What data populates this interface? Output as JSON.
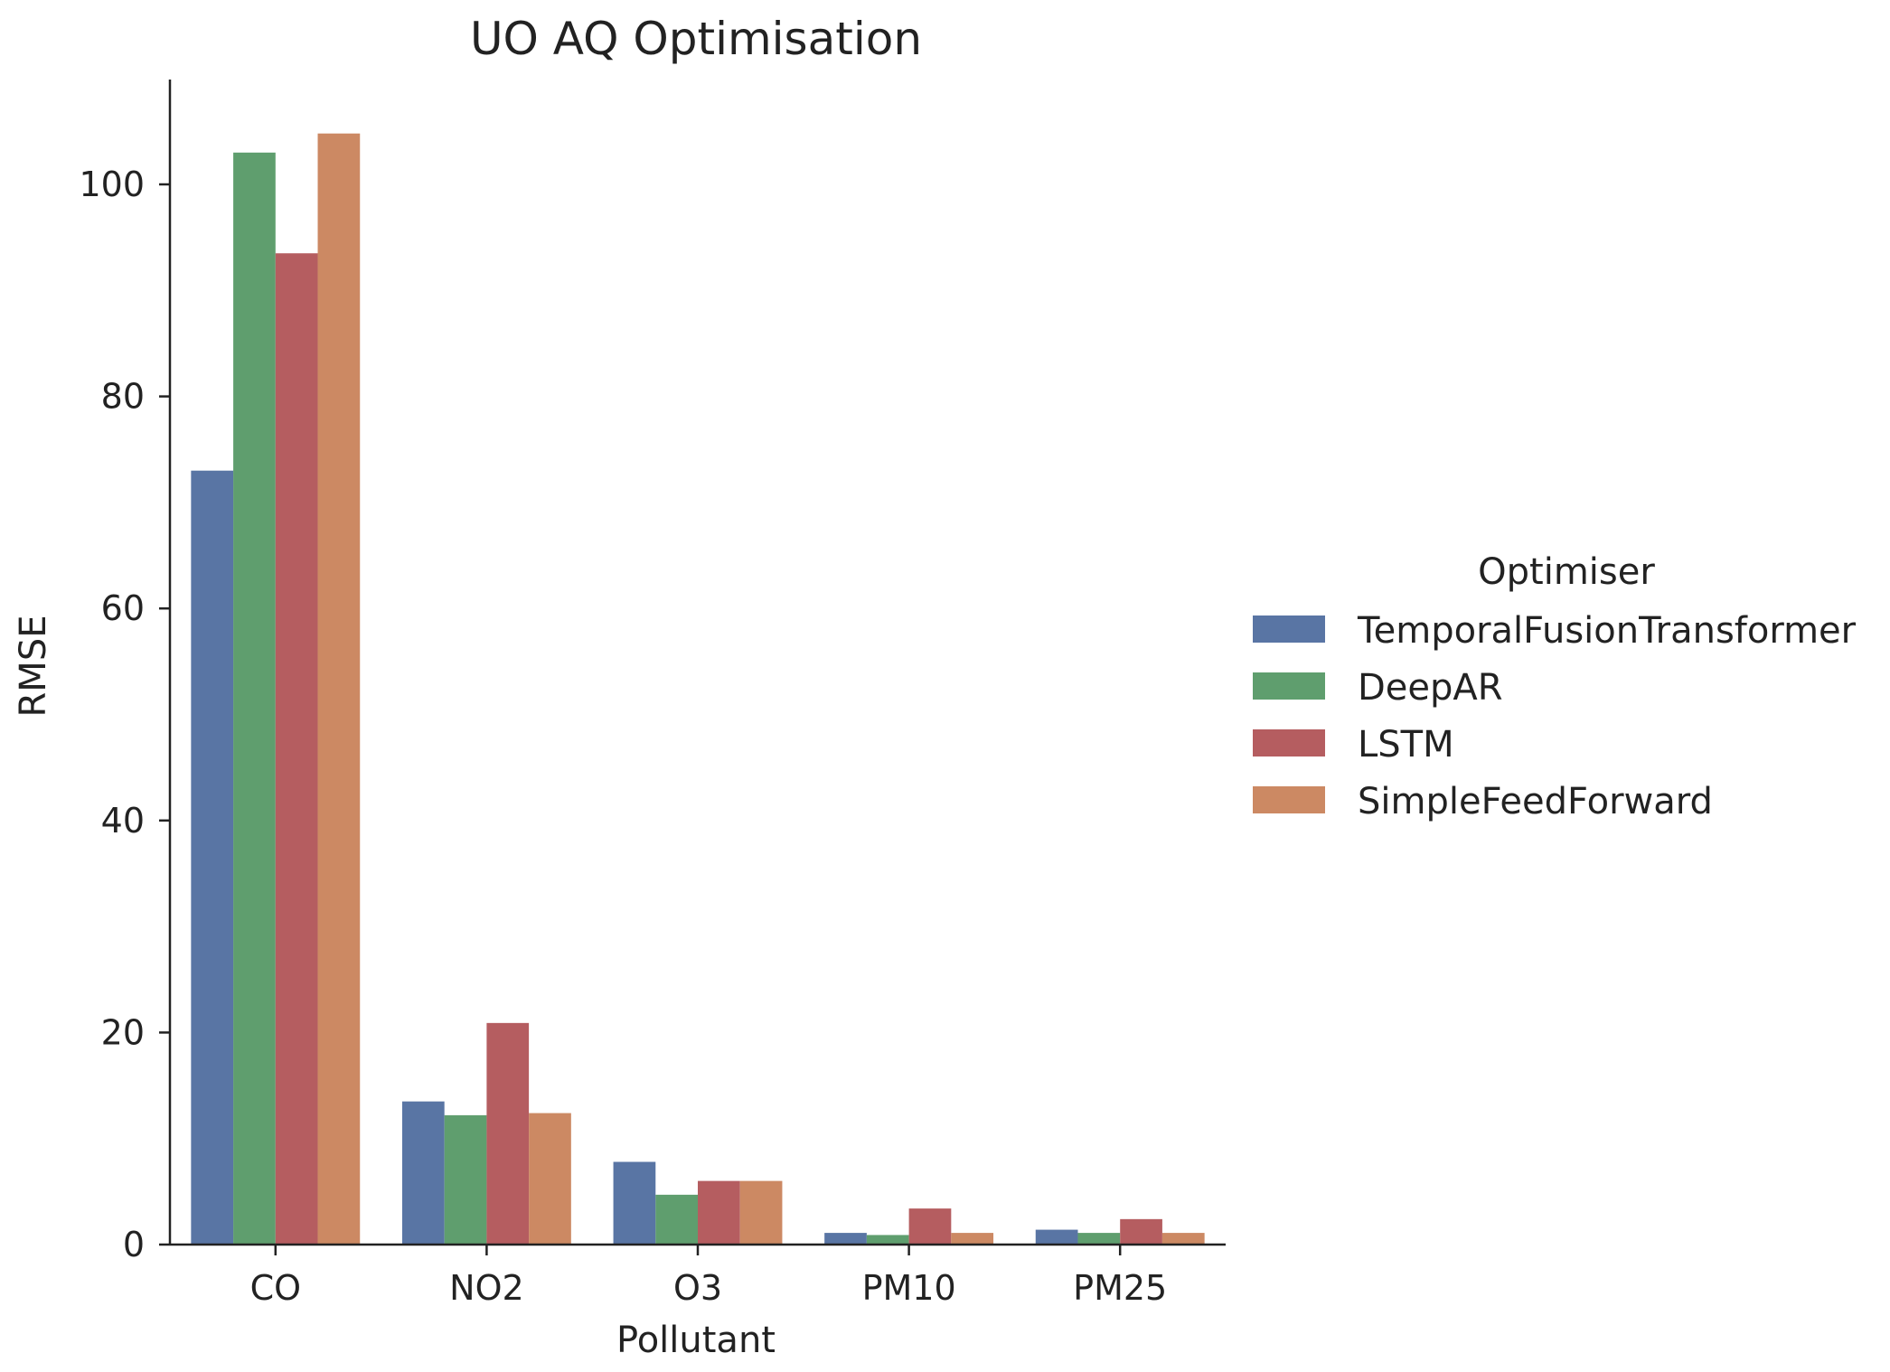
{
  "chart_data": {
    "type": "bar",
    "title": "UO AQ Optimisation",
    "xlabel": "Pollutant",
    "ylabel": "RMSE",
    "ylim": [
      0,
      110
    ],
    "yticks": [
      0,
      20,
      40,
      60,
      80,
      100
    ],
    "grid": false,
    "categories": [
      "CO",
      "NO2",
      "O3",
      "PM10",
      "PM25"
    ],
    "legend": {
      "title": "Optimiser",
      "placement": "right"
    },
    "series": [
      {
        "name": "TemporalFusionTransformer",
        "color": "#5975a4",
        "values": [
          73.0,
          13.5,
          7.8,
          1.1,
          1.4
        ]
      },
      {
        "name": "DeepAR",
        "color": "#5f9e6e",
        "values": [
          103.0,
          12.2,
          4.7,
          0.9,
          1.1
        ]
      },
      {
        "name": "LSTM",
        "color": "#b55d60",
        "values": [
          93.5,
          20.9,
          6.0,
          3.4,
          2.4
        ]
      },
      {
        "name": "SimpleFeedForward",
        "color": "#cc8963",
        "values": [
          104.8,
          12.4,
          6.0,
          1.1,
          1.1
        ]
      }
    ]
  }
}
